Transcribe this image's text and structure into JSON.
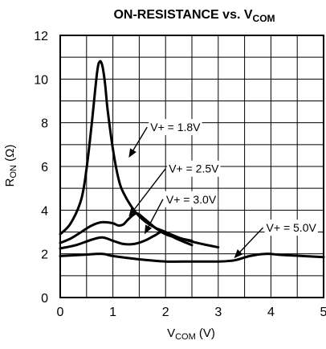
{
  "chart_data": {
    "type": "line",
    "title": {
      "main": "ON-RESISTANCE vs. V",
      "sub": "COM"
    },
    "xlabel": {
      "main": "V",
      "sub": "COM",
      "suffix": " (V)"
    },
    "ylabel": {
      "main": "R",
      "sub": "ON",
      "suffix": " (Ω)"
    },
    "xlim": [
      0,
      5
    ],
    "ylim": [
      0,
      12
    ],
    "x_ticks": [
      "0",
      "1",
      "2",
      "3",
      "4",
      "5"
    ],
    "y_ticks": [
      "0",
      "2",
      "4",
      "6",
      "8",
      "10",
      "12"
    ],
    "grid": true,
    "series": [
      {
        "name": "V+ = 1.8V",
        "x": [
          0,
          0.2,
          0.4,
          0.5,
          0.6,
          0.7,
          0.75,
          0.8,
          0.85,
          0.9,
          1.0,
          1.1,
          1.2,
          1.4,
          1.6,
          1.8,
          2.0,
          2.3,
          2.6,
          3.0
        ],
        "y": [
          2.9,
          3.4,
          4.5,
          5.9,
          8.0,
          10.3,
          10.8,
          10.6,
          9.8,
          8.6,
          6.8,
          5.5,
          4.8,
          4.0,
          3.5,
          3.2,
          3.0,
          2.7,
          2.5,
          2.3
        ]
      },
      {
        "name": "V+ = 2.5V",
        "x": [
          0,
          0.2,
          0.4,
          0.6,
          0.8,
          1.0,
          1.1,
          1.2,
          1.3,
          1.45,
          1.6,
          1.8,
          2.0,
          2.2,
          2.5
        ],
        "y": [
          2.5,
          2.7,
          3.0,
          3.3,
          3.45,
          3.4,
          3.3,
          3.35,
          3.6,
          3.85,
          3.6,
          3.2,
          2.9,
          2.75,
          2.6
        ]
      },
      {
        "name": "V+ = 3.0V",
        "x": [
          0,
          0.3,
          0.6,
          0.8,
          1.0,
          1.2,
          1.4,
          1.6,
          1.8,
          1.95,
          2.2,
          2.5
        ],
        "y": [
          2.25,
          2.4,
          2.65,
          2.75,
          2.6,
          2.45,
          2.45,
          2.6,
          2.85,
          3.0,
          2.7,
          2.4
        ]
      },
      {
        "name": "V+ = 5.0V",
        "x": [
          0,
          0.4,
          0.8,
          1.0,
          1.5,
          2.0,
          2.5,
          3.0,
          3.3,
          3.6,
          3.9,
          4.2,
          4.6,
          5.0
        ],
        "y": [
          1.9,
          1.95,
          2.0,
          1.9,
          1.75,
          1.65,
          1.65,
          1.65,
          1.7,
          1.9,
          2.0,
          1.95,
          1.9,
          1.85
        ]
      }
    ],
    "annotations": [
      {
        "label": "V+ = 1.8V",
        "series": "V+ = 1.8V",
        "text_x": 1.65,
        "text_y": 7.8,
        "point_x": 1.3,
        "point_y": 6.4
      },
      {
        "label": "V+ = 2.5V",
        "series": "V+ = 2.5V",
        "text_x": 2.0,
        "text_y": 5.9,
        "point_x": 1.3,
        "point_y": 3.7
      },
      {
        "label": "V+ = 3.0V",
        "series": "V+ = 3.0V",
        "text_x": 1.95,
        "text_y": 4.5,
        "point_x": 1.6,
        "point_y": 2.9
      },
      {
        "label": "V+ = 5.0V",
        "series": "V+ = 5.0V",
        "text_x": 3.85,
        "text_y": 3.2,
        "point_x": 3.3,
        "point_y": 1.8
      }
    ],
    "colors": {
      "line": "#000000",
      "grid": "#000000",
      "background": "#ffffff"
    }
  }
}
